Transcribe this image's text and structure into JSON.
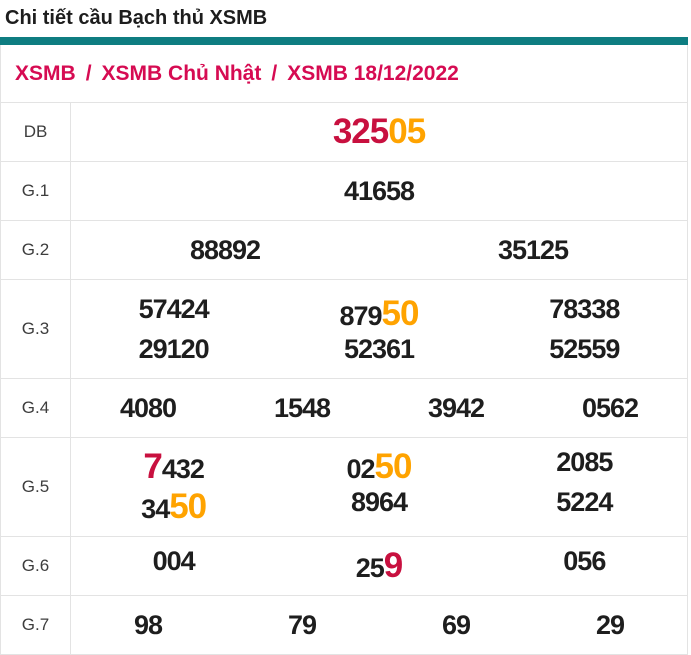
{
  "page": {
    "title": "Chi tiết cầu Bạch thủ XSMB"
  },
  "colors": {
    "accent_teal": "#0E7D81",
    "breadcrumb_link": "#D60B52",
    "highlight_red": "#C8103F",
    "highlight_orange": "#FFA300",
    "number_text": "#1E1E1E",
    "label_text": "#3D3D3D",
    "border": "#E3E3E3"
  },
  "breadcrumb": {
    "separator": "/",
    "items": [
      "XSMB",
      "XSMB Chủ Nhật",
      "XSMB 18/12/2022"
    ]
  },
  "table": {
    "rows": [
      {
        "label": "DB",
        "lines": [
          [
            [
              {
                "t": "325",
                "c": "red"
              },
              {
                "t": "05",
                "c": "orange"
              }
            ]
          ]
        ]
      },
      {
        "label": "G.1",
        "lines": [
          [
            [
              {
                "t": "41658",
                "c": "black"
              }
            ]
          ]
        ]
      },
      {
        "label": "G.2",
        "lines": [
          [
            [
              {
                "t": "88892",
                "c": "black"
              }
            ],
            [
              {
                "t": "35125",
                "c": "black"
              }
            ]
          ]
        ]
      },
      {
        "label": "G.3",
        "lines": [
          [
            [
              {
                "t": "57424",
                "c": "black"
              }
            ],
            [
              {
                "t": "879",
                "c": "black"
              },
              {
                "t": "50",
                "c": "orange"
              }
            ],
            [
              {
                "t": "78338",
                "c": "black"
              }
            ]
          ],
          [
            [
              {
                "t": "29120",
                "c": "black"
              }
            ],
            [
              {
                "t": "52361",
                "c": "black"
              }
            ],
            [
              {
                "t": "52559",
                "c": "black"
              }
            ]
          ]
        ]
      },
      {
        "label": "G.4",
        "lines": [
          [
            [
              {
                "t": "4080",
                "c": "black"
              }
            ],
            [
              {
                "t": "1548",
                "c": "black"
              }
            ],
            [
              {
                "t": "3942",
                "c": "black"
              }
            ],
            [
              {
                "t": "0562",
                "c": "black"
              }
            ]
          ]
        ]
      },
      {
        "label": "G.5",
        "lines": [
          [
            [
              {
                "t": "7",
                "c": "red"
              },
              {
                "t": "432",
                "c": "black"
              }
            ],
            [
              {
                "t": "02",
                "c": "black"
              },
              {
                "t": "50",
                "c": "orange"
              }
            ],
            [
              {
                "t": "2085",
                "c": "black"
              }
            ]
          ],
          [
            [
              {
                "t": "34",
                "c": "black"
              },
              {
                "t": "50",
                "c": "orange"
              }
            ],
            [
              {
                "t": "8964",
                "c": "black"
              }
            ],
            [
              {
                "t": "5224",
                "c": "black"
              }
            ]
          ]
        ]
      },
      {
        "label": "G.6",
        "lines": [
          [
            [
              {
                "t": "004",
                "c": "black"
              }
            ],
            [
              {
                "t": "25",
                "c": "black"
              },
              {
                "t": "9",
                "c": "red"
              }
            ],
            [
              {
                "t": "056",
                "c": "black"
              }
            ]
          ]
        ]
      },
      {
        "label": "G.7",
        "lines": [
          [
            [
              {
                "t": "98",
                "c": "black"
              }
            ],
            [
              {
                "t": "79",
                "c": "black"
              }
            ],
            [
              {
                "t": "69",
                "c": "black"
              }
            ],
            [
              {
                "t": "29",
                "c": "black"
              }
            ]
          ]
        ]
      }
    ]
  }
}
